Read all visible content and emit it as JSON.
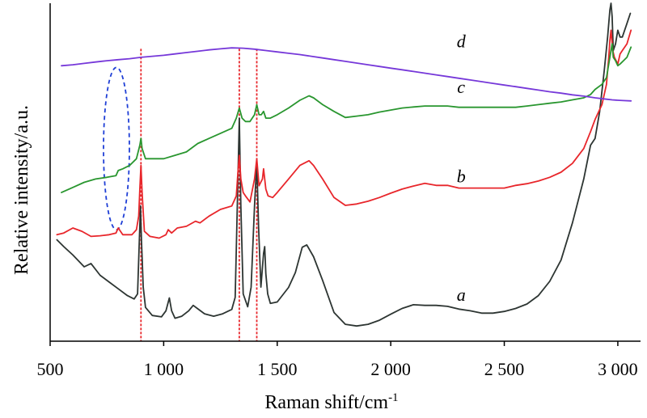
{
  "chart_data": {
    "type": "line",
    "title": "",
    "xlabel": "Raman shift/cm",
    "xlabel_superscript": "-1",
    "ylabel": "Relative intensity/a.u.",
    "xlim": [
      500,
      3100
    ],
    "ylim": [
      0,
      100
    ],
    "xticks": [
      {
        "value": 500,
        "label": "500"
      },
      {
        "value": 1000,
        "label": "1 000"
      },
      {
        "value": 1500,
        "label": "1 500"
      },
      {
        "value": 2000,
        "label": "2 000"
      },
      {
        "value": 2500,
        "label": "2 500"
      },
      {
        "value": 3000,
        "label": "3 000"
      }
    ],
    "grid": false,
    "reference_lines": [
      {
        "x": 900,
        "color": "#e8262b"
      },
      {
        "x": 1333,
        "color": "#e8262b"
      },
      {
        "x": 1410,
        "color": "#e8262b"
      }
    ],
    "annotation_ellipse": {
      "x_center": 792,
      "x_halfwidth": 57,
      "y_center": 57,
      "y_halfheight": 24,
      "color": "#1f3fd6"
    },
    "series": [
      {
        "name": "a",
        "color": "#2d3532",
        "x": [
          530,
          560,
          600,
          650,
          680,
          720,
          760,
          800,
          840,
          870,
          885,
          893,
          898,
          902,
          910,
          920,
          950,
          990,
          1010,
          1025,
          1035,
          1050,
          1080,
          1110,
          1130,
          1150,
          1180,
          1220,
          1260,
          1300,
          1315,
          1327,
          1333,
          1340,
          1350,
          1370,
          1385,
          1400,
          1410,
          1418,
          1428,
          1440,
          1445,
          1450,
          1458,
          1470,
          1500,
          1550,
          1580,
          1610,
          1630,
          1660,
          1700,
          1750,
          1800,
          1850,
          1900,
          1950,
          2000,
          2050,
          2100,
          2150,
          2200,
          2250,
          2300,
          2350,
          2400,
          2450,
          2500,
          2550,
          2600,
          2650,
          2700,
          2750,
          2800,
          2850,
          2880,
          2900,
          2920,
          2940,
          2955,
          2965,
          2970,
          2975,
          2980,
          2990,
          3000,
          3010,
          3020,
          3040,
          3055
        ],
        "y": [
          30,
          28,
          25.5,
          22,
          23,
          19.5,
          17.5,
          15.5,
          13.5,
          12.5,
          14,
          30,
          40,
          30,
          16,
          10,
          7.6,
          7.2,
          9,
          12.8,
          9,
          6.8,
          7.4,
          9,
          10.6,
          9.6,
          8.1,
          7.4,
          8.1,
          9.4,
          13,
          48,
          66,
          40,
          14,
          10.2,
          16,
          40,
          53,
          34,
          16,
          26,
          28,
          20,
          14,
          11.2,
          11.6,
          15.9,
          20.3,
          27.8,
          28.5,
          25,
          18,
          8.5,
          5,
          4.5,
          5,
          6.2,
          8,
          9.7,
          10.8,
          10.6,
          10.6,
          10.3,
          9.5,
          9,
          8.3,
          8.3,
          8.8,
          9.7,
          11,
          13.5,
          17.7,
          24,
          35,
          48,
          58,
          60,
          68,
          80,
          90,
          98,
          100,
          96,
          86,
          88,
          92,
          90,
          90,
          94,
          97
        ]
      },
      {
        "name": "b",
        "color": "#e8262b",
        "x": [
          530,
          560,
          600,
          640,
          680,
          720,
          760,
          790,
          800,
          820,
          860,
          880,
          890,
          895,
          900,
          905,
          915,
          940,
          980,
          1010,
          1020,
          1035,
          1060,
          1100,
          1140,
          1160,
          1200,
          1250,
          1300,
          1320,
          1327,
          1333,
          1340,
          1350,
          1360,
          1380,
          1400,
          1410,
          1420,
          1435,
          1440,
          1450,
          1460,
          1480,
          1500,
          1550,
          1600,
          1640,
          1660,
          1700,
          1750,
          1800,
          1850,
          1900,
          1950,
          2000,
          2050,
          2100,
          2150,
          2200,
          2250,
          2300,
          2350,
          2400,
          2450,
          2500,
          2550,
          2600,
          2650,
          2700,
          2750,
          2800,
          2850,
          2880,
          2900,
          2930,
          2950,
          2960,
          2965,
          2970,
          2978,
          2985,
          3000,
          3010,
          3020,
          3040,
          3058
        ],
        "y": [
          31.5,
          32,
          33.5,
          32.5,
          31,
          31.2,
          31.5,
          32,
          33.5,
          31.5,
          31.5,
          33,
          37,
          45,
          52,
          44,
          32.5,
          31,
          30.5,
          31.5,
          33,
          32,
          33.5,
          34,
          35.5,
          35,
          37,
          39,
          40,
          43,
          50,
          55,
          48,
          44,
          43,
          41.2,
          48,
          54,
          46,
          48,
          51,
          45,
          43,
          42.5,
          44,
          48,
          52,
          53.4,
          52,
          48,
          42.5,
          40.2,
          40.6,
          41.4,
          42.5,
          43.8,
          45,
          45.9,
          46.7,
          46.1,
          46.1,
          45.3,
          45.3,
          45.3,
          45.3,
          45.3,
          46.1,
          46.6,
          47.4,
          48.5,
          50,
          52.6,
          57,
          62,
          65.6,
          70,
          76,
          84,
          89,
          92,
          86,
          84,
          82,
          85,
          86,
          88,
          92
        ]
      },
      {
        "name": "c",
        "color": "#29962f",
        "x": [
          550,
          600,
          650,
          700,
          750,
          790,
          800,
          820,
          850,
          880,
          895,
          900,
          905,
          920,
          950,
          1000,
          1050,
          1100,
          1150,
          1200,
          1250,
          1300,
          1320,
          1333,
          1345,
          1360,
          1380,
          1400,
          1410,
          1420,
          1430,
          1440,
          1450,
          1470,
          1500,
          1550,
          1600,
          1640,
          1660,
          1700,
          1750,
          1800,
          1850,
          1900,
          1950,
          2000,
          2050,
          2100,
          2150,
          2200,
          2250,
          2300,
          2350,
          2400,
          2450,
          2500,
          2550,
          2600,
          2650,
          2700,
          2750,
          2800,
          2850,
          2880,
          2900,
          2930,
          2950,
          2960,
          2970,
          2975,
          2980,
          2990,
          3000,
          3010,
          3025,
          3040,
          3058
        ],
        "y": [
          44,
          45.5,
          47,
          48,
          48.5,
          49,
          50.5,
          51,
          52,
          54,
          58,
          60,
          57,
          54,
          54,
          54,
          55,
          56,
          58.5,
          60,
          61.5,
          63,
          66,
          69,
          66,
          65,
          65,
          67,
          70,
          67,
          67,
          68,
          66,
          66,
          67,
          69,
          71.3,
          72.6,
          72,
          70,
          68,
          66.2,
          66.6,
          67,
          67.8,
          68.4,
          69,
          69.3,
          69.6,
          69.6,
          69.6,
          69.2,
          69.2,
          69.2,
          69.2,
          69.2,
          69.2,
          69.6,
          70,
          70.4,
          70.8,
          71.4,
          72,
          73,
          74.5,
          76,
          78,
          82,
          86,
          88,
          84,
          83,
          81.5,
          82,
          83,
          84,
          87
        ]
      },
      {
        "name": "d",
        "color": "#7638d9",
        "x": [
          550,
          600,
          650,
          700,
          750,
          800,
          850,
          900,
          950,
          1000,
          1050,
          1100,
          1150,
          1200,
          1250,
          1300,
          1350,
          1400,
          1450,
          1500,
          1550,
          1600,
          1650,
          1700,
          1750,
          1800,
          1850,
          1900,
          1950,
          2000,
          2050,
          2100,
          2150,
          2200,
          2250,
          2300,
          2350,
          2400,
          2450,
          2500,
          2550,
          2600,
          2650,
          2700,
          2750,
          2800,
          2850,
          2900,
          2950,
          2975,
          3000,
          3025,
          3058
        ],
        "y": [
          81.5,
          81.8,
          82.2,
          82.6,
          83,
          83.3,
          83.6,
          84,
          84.3,
          84.6,
          85,
          85.4,
          85.8,
          86.2,
          86.5,
          86.8,
          86.7,
          86.4,
          86,
          85.6,
          85.2,
          84.8,
          84.3,
          83.8,
          83.3,
          82.8,
          82.3,
          81.8,
          81.3,
          80.8,
          80.3,
          79.8,
          79.3,
          78.8,
          78.3,
          77.8,
          77.3,
          76.8,
          76.3,
          75.8,
          75.3,
          74.8,
          74.3,
          73.8,
          73.4,
          72.9,
          72.5,
          72,
          71.6,
          71.4,
          71.3,
          71.2,
          71.1
        ]
      }
    ],
    "curve_labels": [
      {
        "text": "a",
        "x": 2310,
        "y": 12
      },
      {
        "text": "b",
        "x": 2310,
        "y": 47
      },
      {
        "text": "c",
        "x": 2310,
        "y": 73.5
      },
      {
        "text": "d",
        "x": 2310,
        "y": 87
      }
    ]
  }
}
